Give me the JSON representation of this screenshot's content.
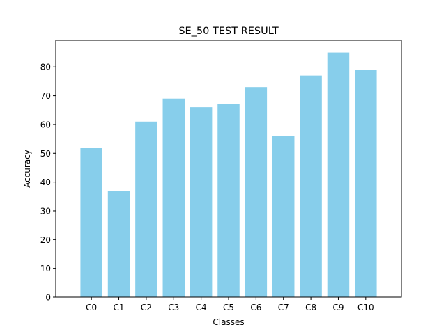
{
  "chart_data": {
    "type": "bar",
    "title": "SE_50 TEST RESULT",
    "xlabel": "Classes",
    "ylabel": "Accuracy",
    "categories": [
      "C0",
      "C1",
      "C2",
      "C3",
      "C4",
      "C5",
      "C6",
      "C7",
      "C8",
      "C9",
      "C10"
    ],
    "values": [
      52,
      37,
      61,
      69,
      66,
      67,
      73,
      56,
      77,
      85,
      79
    ],
    "ylim": [
      0,
      89.25
    ],
    "yticks": [
      0,
      10,
      20,
      30,
      40,
      50,
      60,
      70,
      80
    ],
    "bar_color": "#87CEEB",
    "grid": false,
    "legend": "none"
  }
}
